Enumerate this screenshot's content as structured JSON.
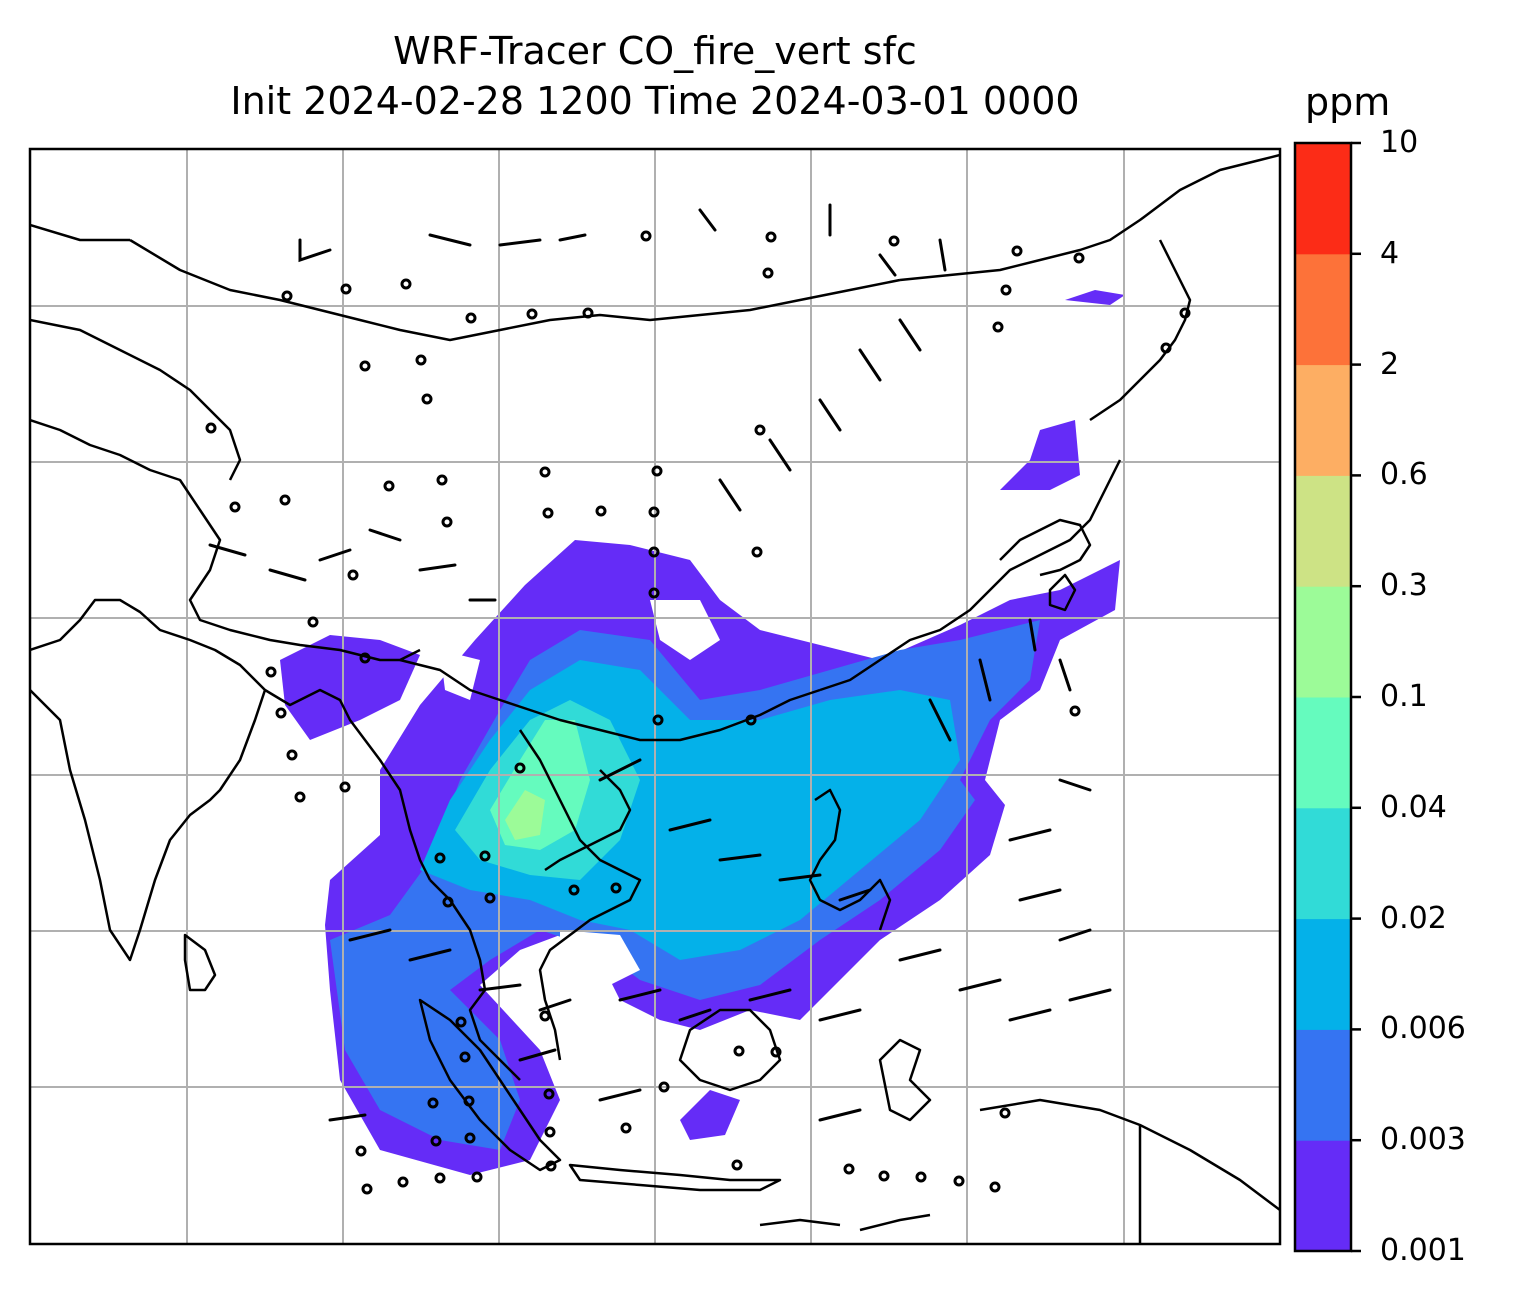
{
  "title": {
    "line1": "WRF-Tracer CO_fire_vert sfc",
    "line2": "Init 2024-02-28 1200 Time 2024-03-01 0000"
  },
  "colorbar": {
    "unit": "ppm",
    "levels": [
      "0.001",
      "0.003",
      "0.006",
      "0.02",
      "0.04",
      "0.1",
      "0.3",
      "0.6",
      "2",
      "4",
      "10"
    ],
    "colors": [
      "#652cf7",
      "#3574f2",
      "#04b1e9",
      "#31dbd7",
      "#65fbbe",
      "#9cfb98",
      "#cde385",
      "#fdae63",
      "#fd7239",
      "#fc2c17"
    ]
  }
}
